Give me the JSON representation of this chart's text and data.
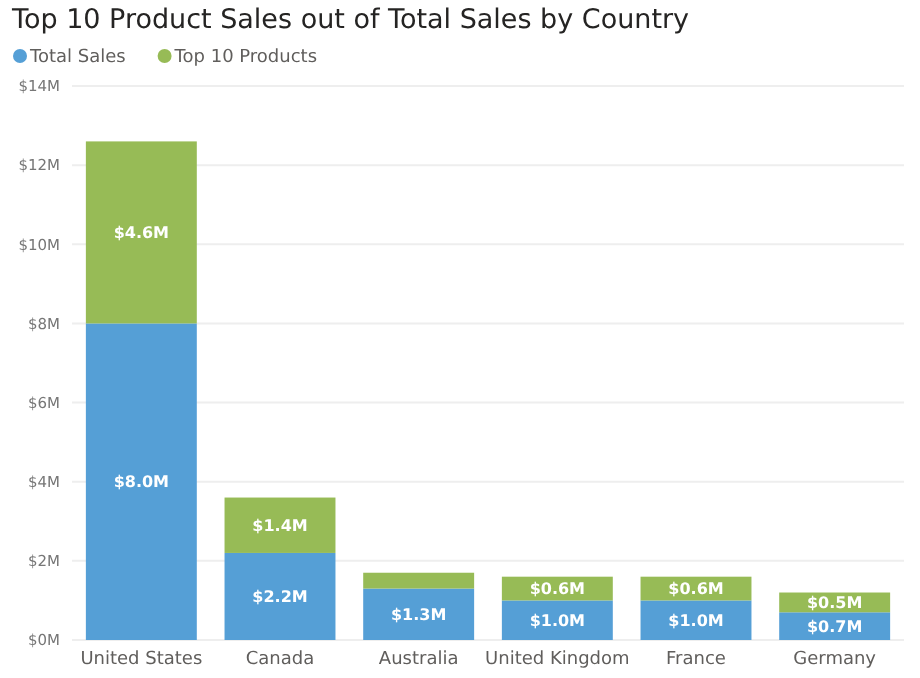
{
  "chart_data": {
    "type": "bar",
    "title": "Top 10 Product Sales out of Total Sales by Country",
    "stacked": true,
    "legend": "top left",
    "grid": "y",
    "categories": [
      "United States",
      "Canada",
      "Australia",
      "United Kingdom",
      "France",
      "Germany"
    ],
    "series": [
      {
        "name": "Total Sales",
        "color": "#559fd6",
        "values": [
          8.0,
          2.2,
          1.3,
          1.0,
          1.0,
          0.7
        ],
        "value_labels": [
          "$8.0M",
          "$2.2M",
          "$1.3M",
          "$1.0M",
          "$1.0M",
          "$0.7M"
        ]
      },
      {
        "name": "Top 10 Products",
        "color": "#97bb56",
        "values": [
          4.6,
          1.4,
          0.4,
          0.6,
          0.6,
          0.5
        ],
        "value_labels": [
          "$4.6M",
          "$1.4M",
          null,
          "$0.6M",
          "$0.6M",
          "$0.5M"
        ]
      }
    ],
    "ylim": [
      0,
      14
    ],
    "yticks": [
      {
        "value": 0,
        "label": "$0M"
      },
      {
        "value": 2,
        "label": "$2M"
      },
      {
        "value": 4,
        "label": "$4M"
      },
      {
        "value": 6,
        "label": "$6M"
      },
      {
        "value": 8,
        "label": "$8M"
      },
      {
        "value": 10,
        "label": "$10M"
      },
      {
        "value": 12,
        "label": "$12M"
      },
      {
        "value": 14,
        "label": "$14M"
      }
    ]
  }
}
